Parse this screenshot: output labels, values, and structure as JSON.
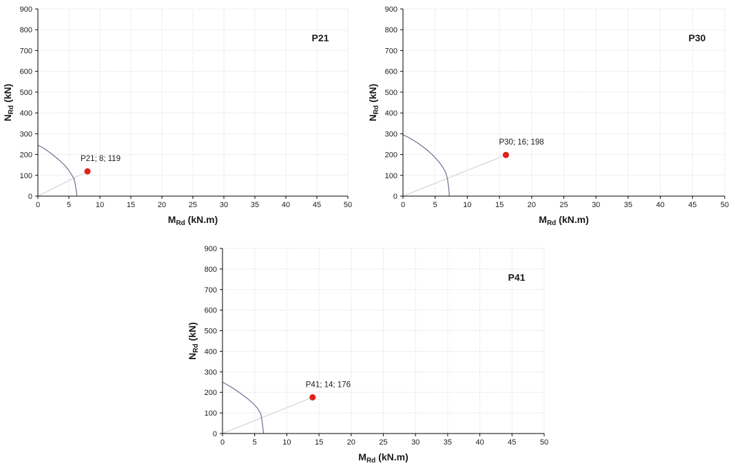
{
  "page": {
    "background": "#ffffff",
    "description": "Three N-M interaction diagrams for columns P21, P30 and P41"
  },
  "colors": {
    "interaction_curve": "#6e6e94",
    "ray_line": "#d6dadd",
    "point_marker": "#e8201a",
    "gridline": "#cfcfcf",
    "axis": "#000000",
    "text": "#1a1a1a"
  },
  "chart_data": [
    {
      "type": "scatter",
      "panel_label": "P21",
      "xlabel_main": "M",
      "xlabel_sub": "Rd",
      "xlabel_rest": " (kN.m)",
      "ylabel_main": "N",
      "ylabel_sub": "Rd",
      "ylabel_rest": " (kN)",
      "xlim": [
        0,
        50
      ],
      "ylim": [
        0,
        900
      ],
      "xticks": [
        0,
        5,
        10,
        15,
        20,
        25,
        30,
        35,
        40,
        45,
        50
      ],
      "yticks": [
        0,
        100,
        200,
        300,
        400,
        500,
        600,
        700,
        800,
        900
      ],
      "grid": true,
      "legend": "none",
      "interaction_curve": [
        [
          0,
          245
        ],
        [
          0.7,
          234
        ],
        [
          1.5,
          219
        ],
        [
          2.3,
          201
        ],
        [
          3,
          184
        ],
        [
          3.7,
          166
        ],
        [
          4.3,
          149
        ],
        [
          4.8,
          131
        ],
        [
          5.2,
          114
        ],
        [
          5.5,
          100
        ],
        [
          5.7,
          90
        ],
        [
          5.85,
          82
        ],
        [
          5.95,
          70
        ],
        [
          6.05,
          52
        ],
        [
          6.15,
          33
        ],
        [
          6.25,
          15
        ],
        [
          6.3,
          0
        ]
      ],
      "ray": {
        "from": [
          0,
          0
        ],
        "to": [
          8,
          119
        ]
      },
      "point": {
        "x": 8,
        "y": 119,
        "label": "P21; 8; 119"
      }
    },
    {
      "type": "scatter",
      "panel_label": "P30",
      "xlabel_main": "M",
      "xlabel_sub": "Rd",
      "xlabel_rest": " (kN.m)",
      "ylabel_main": "N",
      "ylabel_sub": "Rd",
      "ylabel_rest": " (kN)",
      "xlim": [
        0,
        50
      ],
      "ylim": [
        0,
        900
      ],
      "xticks": [
        0,
        5,
        10,
        15,
        20,
        25,
        30,
        35,
        40,
        45,
        50
      ],
      "yticks": [
        0,
        100,
        200,
        300,
        400,
        500,
        600,
        700,
        800,
        900
      ],
      "grid": true,
      "legend": "none",
      "interaction_curve": [
        [
          0,
          295
        ],
        [
          0.8,
          283
        ],
        [
          1.6,
          269
        ],
        [
          2.4,
          253
        ],
        [
          3.2,
          235
        ],
        [
          4,
          215
        ],
        [
          4.6,
          198
        ],
        [
          5.2,
          178
        ],
        [
          5.7,
          160
        ],
        [
          6.1,
          143
        ],
        [
          6.5,
          122
        ],
        [
          6.75,
          103
        ],
        [
          6.9,
          85
        ],
        [
          7.0,
          65
        ],
        [
          7.1,
          42
        ],
        [
          7.15,
          25
        ],
        [
          7.2,
          12
        ],
        [
          7.15,
          0
        ]
      ],
      "ray": {
        "from": [
          0,
          0
        ],
        "to": [
          16,
          198
        ]
      },
      "point": {
        "x": 16,
        "y": 198,
        "label": "P30; 16; 198"
      }
    },
    {
      "type": "scatter",
      "panel_label": "P41",
      "xlabel_main": "M",
      "xlabel_sub": "Rd",
      "xlabel_rest": " (kN.m)",
      "ylabel_main": "N",
      "ylabel_sub": "Rd",
      "ylabel_rest": " (kN)",
      "xlim": [
        0,
        50
      ],
      "ylim": [
        0,
        900
      ],
      "xticks": [
        0,
        5,
        10,
        15,
        20,
        25,
        30,
        35,
        40,
        45,
        50
      ],
      "yticks": [
        0,
        100,
        200,
        300,
        400,
        500,
        600,
        700,
        800,
        900
      ],
      "grid": true,
      "legend": "none",
      "interaction_curve": [
        [
          0,
          250
        ],
        [
          0.8,
          236
        ],
        [
          1.6,
          221
        ],
        [
          2.4,
          204
        ],
        [
          3.2,
          186
        ],
        [
          4,
          167
        ],
        [
          4.6,
          151
        ],
        [
          5.1,
          135
        ],
        [
          5.5,
          120
        ],
        [
          5.8,
          105
        ],
        [
          5.95,
          95
        ],
        [
          6.05,
          80
        ],
        [
          6.15,
          60
        ],
        [
          6.25,
          38
        ],
        [
          6.3,
          20
        ],
        [
          6.4,
          0
        ]
      ],
      "ray": {
        "from": [
          0,
          0
        ],
        "to": [
          14,
          176
        ]
      },
      "point": {
        "x": 14,
        "y": 176,
        "label": "P41; 14; 176"
      }
    }
  ]
}
